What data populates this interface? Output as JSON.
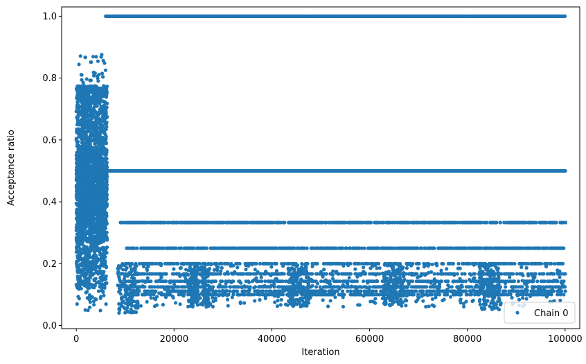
{
  "chart_data": {
    "type": "scatter",
    "xlabel": "Iteration",
    "ylabel": "Acceptance ratio",
    "xlim": [
      -3000,
      103000
    ],
    "ylim": [
      -0.01,
      1.03
    ],
    "x_ticks": [
      0,
      20000,
      40000,
      60000,
      80000,
      100000
    ],
    "x_tick_labels": [
      "0",
      "20000",
      "40000",
      "60000",
      "80000",
      "100000"
    ],
    "y_ticks": [
      0.0,
      0.2,
      0.4,
      0.6,
      0.8,
      1.0
    ],
    "y_tick_labels": [
      "0.0",
      "0.2",
      "0.4",
      "0.6",
      "0.8",
      "1.0"
    ],
    "grid": false,
    "legend_position": "bottom-right",
    "series": [
      {
        "name": "Chain 0",
        "color": "#1f77b4",
        "marker": "circle",
        "burn_in_phase": {
          "x_range": [
            0,
            6300
          ],
          "y_range": [
            0.045,
            0.88
          ]
        },
        "levels": [
          {
            "y": 1.0,
            "x_range": [
              6000,
              100000
            ]
          },
          {
            "y": 0.5,
            "x_range": [
              6000,
              100000
            ]
          },
          {
            "y": 0.333,
            "x_range": [
              9000,
              100000
            ]
          },
          {
            "y": 0.25,
            "x_range": [
              10000,
              100000
            ]
          },
          {
            "y": 0.2,
            "x_range": [
              10000,
              100000
            ]
          },
          {
            "y": 0.167,
            "x_range": [
              10000,
              100000
            ]
          },
          {
            "y": 0.143,
            "x_range": [
              10000,
              100000
            ]
          },
          {
            "y": 0.125,
            "x_range": [
              10000,
              100000
            ]
          },
          {
            "y": 0.111,
            "x_range": [
              10000,
              100000
            ]
          },
          {
            "y": 0.1,
            "x_range": [
              10000,
              100000
            ]
          }
        ],
        "tail_dips": [
          {
            "x": 10500,
            "y_min": 0.04
          },
          {
            "x": 25000,
            "y_min": 0.06
          },
          {
            "x": 45500,
            "y_min": 0.06
          },
          {
            "x": 65000,
            "y_min": 0.06
          },
          {
            "x": 84500,
            "y_min": 0.05
          }
        ]
      }
    ]
  }
}
